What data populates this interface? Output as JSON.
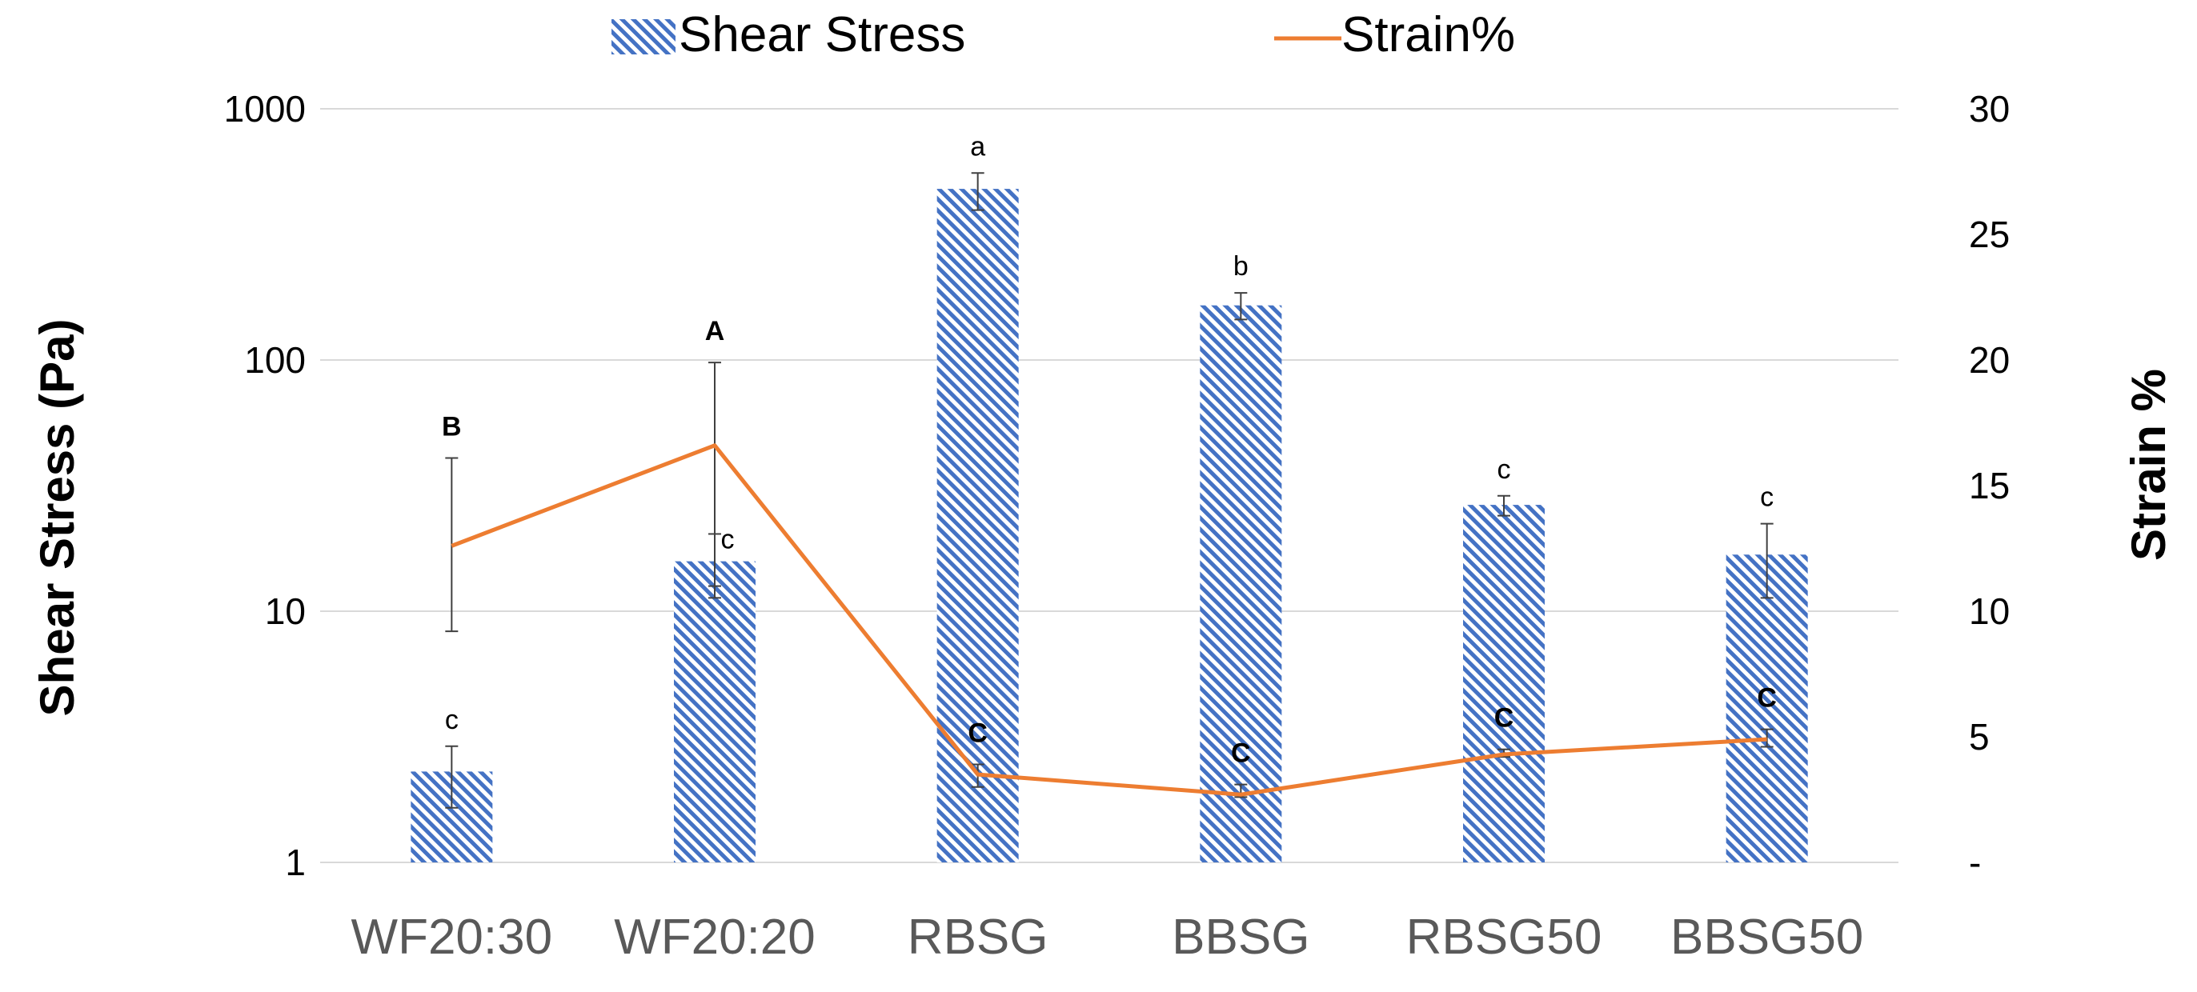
{
  "chart_data": {
    "type": "bar+line",
    "categories": [
      "WF20:30",
      "WF20:20",
      "RBSG",
      "BBSG",
      "RBSG50",
      "BBSG50"
    ],
    "series": [
      {
        "name": "Shear Stress",
        "kind": "bar",
        "axis": "left",
        "values": [
          2.3,
          15.8,
          480,
          165,
          26.5,
          16.8
        ],
        "error_low": [
          1.65,
          11.3,
          395,
          145,
          24,
          11.3
        ],
        "error_high": [
          2.9,
          20.3,
          555,
          185,
          28.8,
          22.3
        ],
        "letters": [
          "c",
          "c",
          "a",
          "b",
          "c",
          "c"
        ]
      },
      {
        "name": "Strain%",
        "kind": "line",
        "axis": "right",
        "values": [
          12.6,
          16.6,
          3.5,
          2.7,
          4.3,
          4.9
        ],
        "error_low": [
          9.2,
          11.0,
          3.0,
          2.6,
          4.2,
          4.6
        ],
        "error_high": [
          16.1,
          19.9,
          3.9,
          3.1,
          4.5,
          5.3
        ],
        "letters": [
          "B",
          "A",
          "C",
          "C",
          "C",
          "C"
        ]
      }
    ],
    "left_axis": {
      "label": "Shear Stress (Pa)",
      "scale": "log",
      "ylim": [
        1,
        1000
      ],
      "ticks": [
        1,
        10,
        100,
        1000
      ],
      "tick_labels": [
        "1",
        "10",
        "100",
        "1000"
      ]
    },
    "right_axis": {
      "label": "Strain %",
      "scale": "linear",
      "ylim": [
        0,
        30
      ],
      "ticks": [
        0,
        5,
        10,
        15,
        20,
        25,
        30
      ],
      "tick_labels": [
        "-",
        "5",
        "10",
        "15",
        "20",
        "25",
        "30"
      ]
    },
    "legend": {
      "position": "top-center",
      "items": [
        "Shear Stress",
        "Strain%"
      ]
    },
    "grid": true,
    "colors": {
      "bar": "#4472c4",
      "line": "#ed7d31",
      "grid": "#d9d9d9",
      "error": "#404040",
      "tick_label": "#595959",
      "category_label": "#595959",
      "axis_title": "#000000"
    }
  }
}
